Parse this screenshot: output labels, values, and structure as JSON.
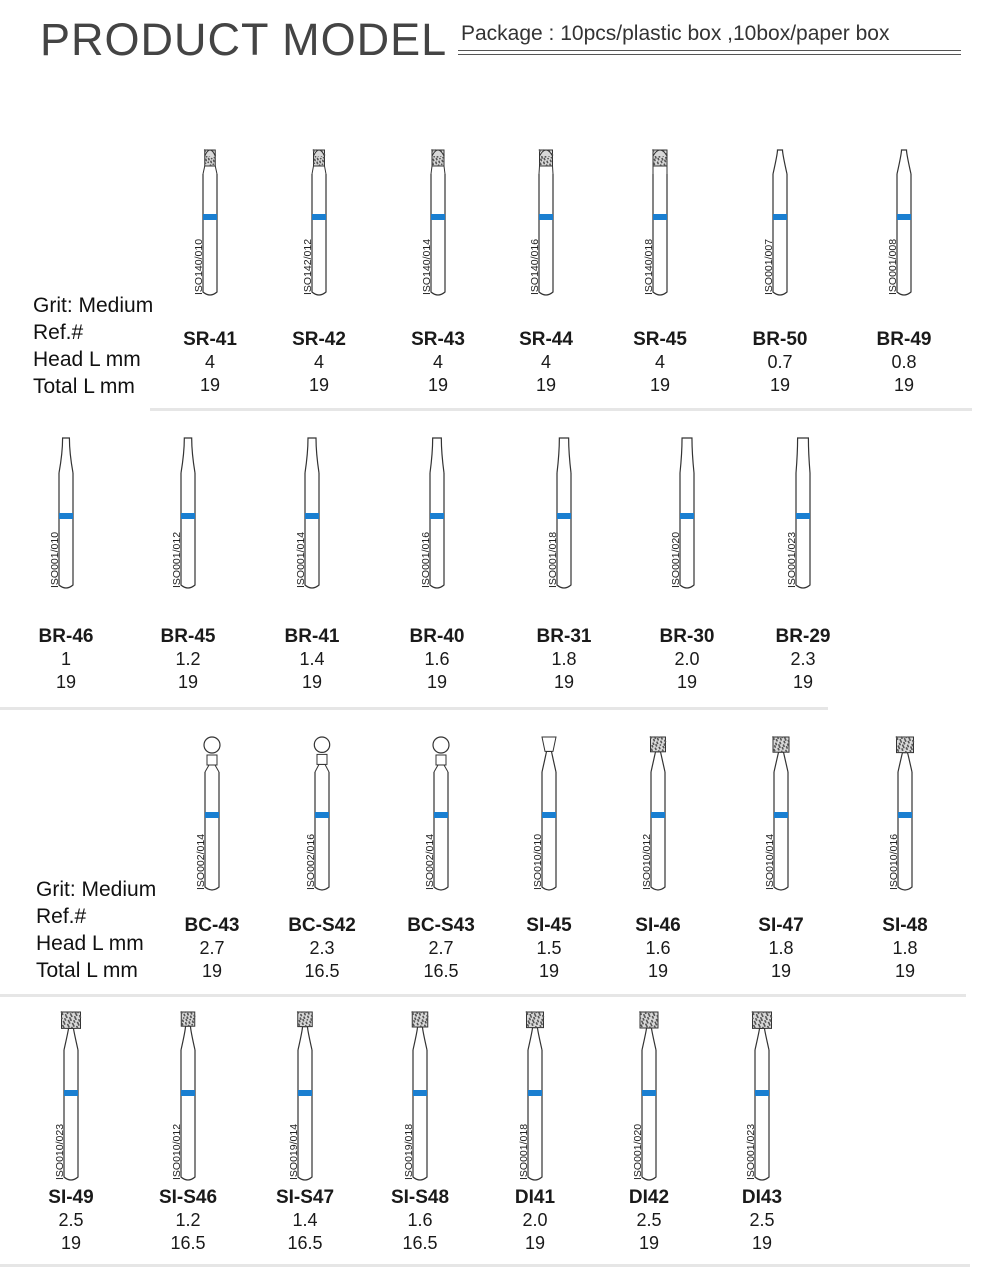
{
  "header": {
    "title": "PRODUCT MODEL",
    "package": "Package : 10pcs/plastic box ,10box/paper box"
  },
  "legend": {
    "grit": "Grit: Medium",
    "ref": "Ref.#",
    "head": "Head L mm",
    "total": "Total L mm"
  },
  "colors": {
    "band": "#1a7fd1",
    "outline": "#333333",
    "separator": "#e6e6e6"
  },
  "rows": [
    {
      "items": [
        {
          "ref": "SR-41",
          "head": "4",
          "total": "19",
          "iso": "ISO140/010",
          "shape": "cylinder-round",
          "width": 0.45
        },
        {
          "ref": "SR-42",
          "head": "4",
          "total": "19",
          "iso": "ISO142/012",
          "shape": "cylinder-round",
          "width": 0.5
        },
        {
          "ref": "SR-43",
          "head": "4",
          "total": "19",
          "iso": "ISO140/014",
          "shape": "cylinder-round",
          "width": 0.6
        },
        {
          "ref": "SR-44",
          "head": "4",
          "total": "19",
          "iso": "ISO140/016",
          "shape": "cylinder-round",
          "width": 0.7
        },
        {
          "ref": "SR-45",
          "head": "4",
          "total": "19",
          "iso": "ISO140/018",
          "shape": "cylinder-round",
          "width": 0.8
        },
        {
          "ref": "BR-50",
          "head": "0.7",
          "total": "19",
          "iso": "ISO001/007",
          "shape": "needle",
          "width": 0.25
        },
        {
          "ref": "BR-49",
          "head": "0.8",
          "total": "19",
          "iso": "ISO001/008",
          "shape": "needle",
          "width": 0.3
        }
      ]
    },
    {
      "items": [
        {
          "ref": "BR-46",
          "head": "1",
          "total": "19",
          "iso": "ISO001/010",
          "shape": "taper",
          "width": 0.35
        },
        {
          "ref": "BR-45",
          "head": "1.2",
          "total": "19",
          "iso": "ISO001/012",
          "shape": "taper",
          "width": 0.42
        },
        {
          "ref": "BR-41",
          "head": "1.4",
          "total": "19",
          "iso": "ISO001/014",
          "shape": "taper",
          "width": 0.5
        },
        {
          "ref": "BR-40",
          "head": "1.6",
          "total": "19",
          "iso": "ISO001/016",
          "shape": "taper",
          "width": 0.58
        },
        {
          "ref": "BR-31",
          "head": "1.8",
          "total": "19",
          "iso": "ISO001/018",
          "shape": "taper",
          "width": 0.66
        },
        {
          "ref": "BR-30",
          "head": "2.0",
          "total": "19",
          "iso": "ISO001/020",
          "shape": "taper",
          "width": 0.74
        },
        {
          "ref": "BR-29",
          "head": "2.3",
          "total": "19",
          "iso": "ISO001/023",
          "shape": "taper",
          "width": 0.85
        }
      ]
    },
    {
      "items": [
        {
          "ref": "BC-43",
          "head": "2.7",
          "total": "19",
          "iso": "ISO002/014",
          "shape": "ball",
          "width": 1.0
        },
        {
          "ref": "BC-S42",
          "head": "2.3",
          "total": "16.5",
          "iso": "ISO002/016",
          "shape": "ball",
          "width": 0.85
        },
        {
          "ref": "BC-S43",
          "head": "2.7",
          "total": "16.5",
          "iso": "ISO002/014",
          "shape": "ball",
          "width": 1.0
        },
        {
          "ref": "SI-45",
          "head": "1.5",
          "total": "19",
          "iso": "ISO010/010",
          "shape": "inverted",
          "width": 0.6
        },
        {
          "ref": "SI-46",
          "head": "1.6",
          "total": "19",
          "iso": "ISO010/012",
          "shape": "inverted-grit",
          "width": 0.7
        },
        {
          "ref": "SI-47",
          "head": "1.8",
          "total": "19",
          "iso": "ISO010/014",
          "shape": "inverted-grit",
          "width": 0.8
        },
        {
          "ref": "SI-48",
          "head": "1.8",
          "total": "19",
          "iso": "ISO010/016",
          "shape": "inverted-grit",
          "width": 0.9
        }
      ]
    },
    {
      "items": [
        {
          "ref": "SI-49",
          "head": "2.5",
          "total": "19",
          "iso": "ISO010/023",
          "shape": "inverted-grit",
          "width": 1.1
        },
        {
          "ref": "SI-S46",
          "head": "1.2",
          "total": "16.5",
          "iso": "ISO010/012",
          "shape": "inverted-grit",
          "width": 0.55
        },
        {
          "ref": "SI-S47",
          "head": "1.4",
          "total": "16.5",
          "iso": "ISO019/014",
          "shape": "inverted-grit",
          "width": 0.65
        },
        {
          "ref": "SI-S48",
          "head": "1.6",
          "total": "16.5",
          "iso": "ISO019/018",
          "shape": "inverted-grit",
          "width": 0.75
        },
        {
          "ref": "DI41",
          "head": "2.0",
          "total": "19",
          "iso": "ISO001/018",
          "shape": "inverted-grit",
          "width": 0.9
        },
        {
          "ref": "DI42",
          "head": "2.5",
          "total": "19",
          "iso": "ISO001/020",
          "shape": "inverted-grit",
          "width": 1.0
        },
        {
          "ref": "DI43",
          "head": "2.5",
          "total": "19",
          "iso": "ISO001/023",
          "shape": "inverted-grit",
          "width": 1.1
        }
      ]
    }
  ]
}
